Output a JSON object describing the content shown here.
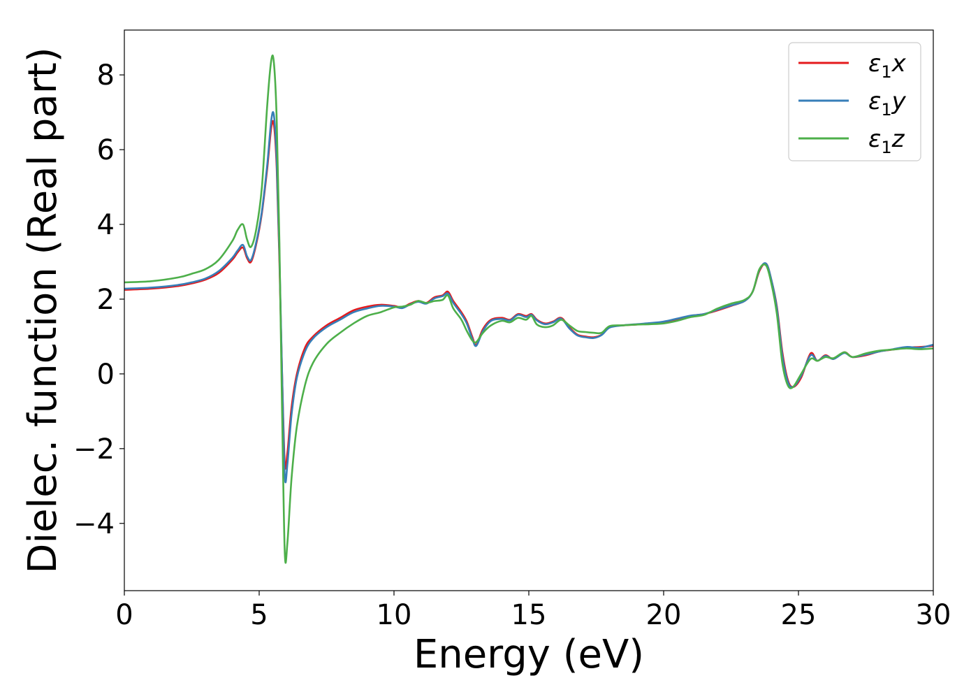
{
  "chart_data": {
    "type": "line",
    "title": "",
    "xlabel": "Energy (eV)",
    "ylabel": "Dielec. function (Real part)",
    "xlim": [
      0,
      30
    ],
    "ylim": [
      -5.8,
      9.2
    ],
    "xticks": [
      0,
      5,
      10,
      15,
      20,
      25,
      30
    ],
    "xtick_labels": [
      "0",
      "5",
      "10",
      "15",
      "20",
      "25",
      "30"
    ],
    "yticks": [
      -4,
      -2,
      0,
      2,
      4,
      6,
      8
    ],
    "ytick_labels": [
      "−4",
      "−2",
      "0",
      "2",
      "4",
      "6",
      "8"
    ],
    "grid": false,
    "legend_position": "top-right",
    "series": [
      {
        "name": "ε₁x",
        "legend_main": "ε",
        "legend_sub": "1",
        "legend_tail": "x",
        "color": "#e41a1c",
        "x": [
          0,
          1,
          2,
          2.5,
          3,
          3.5,
          4,
          4.2,
          4.4,
          4.55,
          4.7,
          4.9,
          5.1,
          5.3,
          5.45,
          5.55,
          5.65,
          5.75,
          5.85,
          5.95,
          6.05,
          6.2,
          6.4,
          6.7,
          7,
          7.5,
          8,
          8.5,
          9,
          9.5,
          10,
          10.3,
          10.6,
          10.9,
          11.2,
          11.5,
          11.8,
          12,
          12.2,
          12.5,
          12.7,
          12.9,
          13.05,
          13.3,
          13.6,
          14,
          14.3,
          14.6,
          14.9,
          15.1,
          15.3,
          15.6,
          15.9,
          16.2,
          16.5,
          16.8,
          17.1,
          17.4,
          17.7,
          18,
          18.5,
          19,
          19.5,
          20,
          20.5,
          21,
          21.5,
          22,
          22.5,
          23,
          23.3,
          23.55,
          23.8,
          24,
          24.2,
          24.4,
          24.6,
          24.8,
          25.1,
          25.45,
          25.7,
          26,
          26.3,
          26.7,
          27,
          27.5,
          28,
          28.5,
          29,
          29.5,
          30
        ],
        "y": [
          2.25,
          2.28,
          2.35,
          2.42,
          2.52,
          2.7,
          3.05,
          3.25,
          3.38,
          3.1,
          3.0,
          3.5,
          4.3,
          5.5,
          6.6,
          6.65,
          5.5,
          3.0,
          0.0,
          -2.4,
          -2.1,
          -0.9,
          0.0,
          0.7,
          1.0,
          1.3,
          1.5,
          1.7,
          1.8,
          1.85,
          1.82,
          1.78,
          1.88,
          1.95,
          1.9,
          2.05,
          2.1,
          2.2,
          1.95,
          1.65,
          1.4,
          1.0,
          0.78,
          1.2,
          1.45,
          1.5,
          1.45,
          1.6,
          1.55,
          1.6,
          1.45,
          1.35,
          1.4,
          1.5,
          1.25,
          1.05,
          1.0,
          0.98,
          1.05,
          1.25,
          1.3,
          1.32,
          1.35,
          1.38,
          1.45,
          1.55,
          1.6,
          1.7,
          1.82,
          1.95,
          2.2,
          2.75,
          2.95,
          2.5,
          1.8,
          0.6,
          -0.15,
          -0.35,
          -0.1,
          0.55,
          0.35,
          0.5,
          0.4,
          0.58,
          0.45,
          0.5,
          0.6,
          0.65,
          0.7,
          0.72,
          0.75
        ]
      },
      {
        "name": "ε₁y",
        "legend_main": "ε",
        "legend_sub": "1",
        "legend_tail": "y",
        "color": "#377eb8",
        "x": [
          0,
          1,
          2,
          2.5,
          3,
          3.5,
          4,
          4.2,
          4.4,
          4.55,
          4.7,
          4.9,
          5.1,
          5.3,
          5.45,
          5.55,
          5.65,
          5.75,
          5.85,
          5.95,
          6.05,
          6.2,
          6.4,
          6.7,
          7,
          7.5,
          8,
          8.5,
          9,
          9.5,
          10,
          10.3,
          10.6,
          10.9,
          11.2,
          11.5,
          11.8,
          12,
          12.2,
          12.5,
          12.7,
          12.9,
          13.05,
          13.3,
          13.6,
          14,
          14.3,
          14.6,
          14.9,
          15.1,
          15.3,
          15.6,
          15.9,
          16.2,
          16.5,
          16.8,
          17.1,
          17.4,
          17.7,
          18,
          18.5,
          19,
          19.5,
          20,
          20.5,
          21,
          21.5,
          22,
          22.5,
          23,
          23.3,
          23.55,
          23.8,
          24,
          24.2,
          24.4,
          24.6,
          24.8,
          25.1,
          25.45,
          25.7,
          26,
          26.3,
          26.7,
          27,
          27.5,
          28,
          28.5,
          29,
          29.5,
          30
        ],
        "y": [
          2.28,
          2.31,
          2.38,
          2.45,
          2.55,
          2.75,
          3.1,
          3.3,
          3.45,
          3.15,
          3.05,
          3.55,
          4.35,
          5.6,
          6.8,
          6.9,
          5.7,
          3.2,
          0.0,
          -2.75,
          -2.4,
          -1.1,
          -0.1,
          0.6,
          0.95,
          1.25,
          1.45,
          1.65,
          1.75,
          1.82,
          1.8,
          1.76,
          1.86,
          1.93,
          1.88,
          2.02,
          2.08,
          2.15,
          1.9,
          1.6,
          1.35,
          0.95,
          0.75,
          1.15,
          1.42,
          1.47,
          1.43,
          1.58,
          1.52,
          1.58,
          1.43,
          1.33,
          1.38,
          1.48,
          1.22,
          1.03,
          0.98,
          0.96,
          1.04,
          1.24,
          1.3,
          1.33,
          1.36,
          1.4,
          1.48,
          1.56,
          1.6,
          1.72,
          1.83,
          1.95,
          2.2,
          2.78,
          2.95,
          2.5,
          1.75,
          0.5,
          -0.2,
          -0.35,
          -0.05,
          0.5,
          0.35,
          0.48,
          0.4,
          0.56,
          0.45,
          0.52,
          0.6,
          0.66,
          0.72,
          0.7,
          0.78
        ]
      },
      {
        "name": "ε₁z",
        "legend_main": "ε",
        "legend_sub": "1",
        "legend_tail": "z",
        "color": "#4daf4a",
        "x": [
          0,
          1,
          2,
          2.5,
          3,
          3.5,
          4,
          4.2,
          4.4,
          4.55,
          4.7,
          4.9,
          5.1,
          5.3,
          5.45,
          5.55,
          5.65,
          5.75,
          5.85,
          5.95,
          6.05,
          6.2,
          6.4,
          6.7,
          7,
          7.5,
          8,
          8.5,
          9,
          9.5,
          10,
          10.3,
          10.6,
          10.9,
          11.2,
          11.5,
          11.8,
          12,
          12.2,
          12.5,
          12.7,
          12.9,
          13.05,
          13.3,
          13.6,
          14,
          14.3,
          14.6,
          14.9,
          15.1,
          15.3,
          15.6,
          15.9,
          16.2,
          16.5,
          16.8,
          17.1,
          17.4,
          17.7,
          18,
          18.5,
          19,
          19.5,
          20,
          20.5,
          21,
          21.5,
          22,
          22.5,
          23,
          23.3,
          23.55,
          23.8,
          24,
          24.2,
          24.4,
          24.6,
          24.8,
          25.1,
          25.45,
          25.7,
          26,
          26.3,
          26.7,
          27,
          27.5,
          28,
          28.5,
          29,
          29.5,
          30
        ],
        "y": [
          2.45,
          2.48,
          2.58,
          2.68,
          2.8,
          3.05,
          3.55,
          3.85,
          4.0,
          3.6,
          3.4,
          3.9,
          5.0,
          7.2,
          8.4,
          8.3,
          6.8,
          3.5,
          -1.0,
          -4.8,
          -4.5,
          -2.8,
          -1.4,
          -0.3,
          0.3,
          0.8,
          1.1,
          1.35,
          1.55,
          1.65,
          1.78,
          1.8,
          1.85,
          1.95,
          1.9,
          1.95,
          1.98,
          2.1,
          1.75,
          1.45,
          1.15,
          0.9,
          0.85,
          1.1,
          1.3,
          1.42,
          1.38,
          1.5,
          1.45,
          1.55,
          1.32,
          1.25,
          1.3,
          1.45,
          1.3,
          1.15,
          1.12,
          1.1,
          1.1,
          1.28,
          1.3,
          1.32,
          1.33,
          1.35,
          1.42,
          1.52,
          1.58,
          1.75,
          1.88,
          1.98,
          2.2,
          2.8,
          2.9,
          2.4,
          1.6,
          0.3,
          -0.3,
          -0.35,
          0.0,
          0.4,
          0.35,
          0.45,
          0.42,
          0.58,
          0.45,
          0.55,
          0.62,
          0.65,
          0.68,
          0.66,
          0.68
        ]
      }
    ]
  }
}
